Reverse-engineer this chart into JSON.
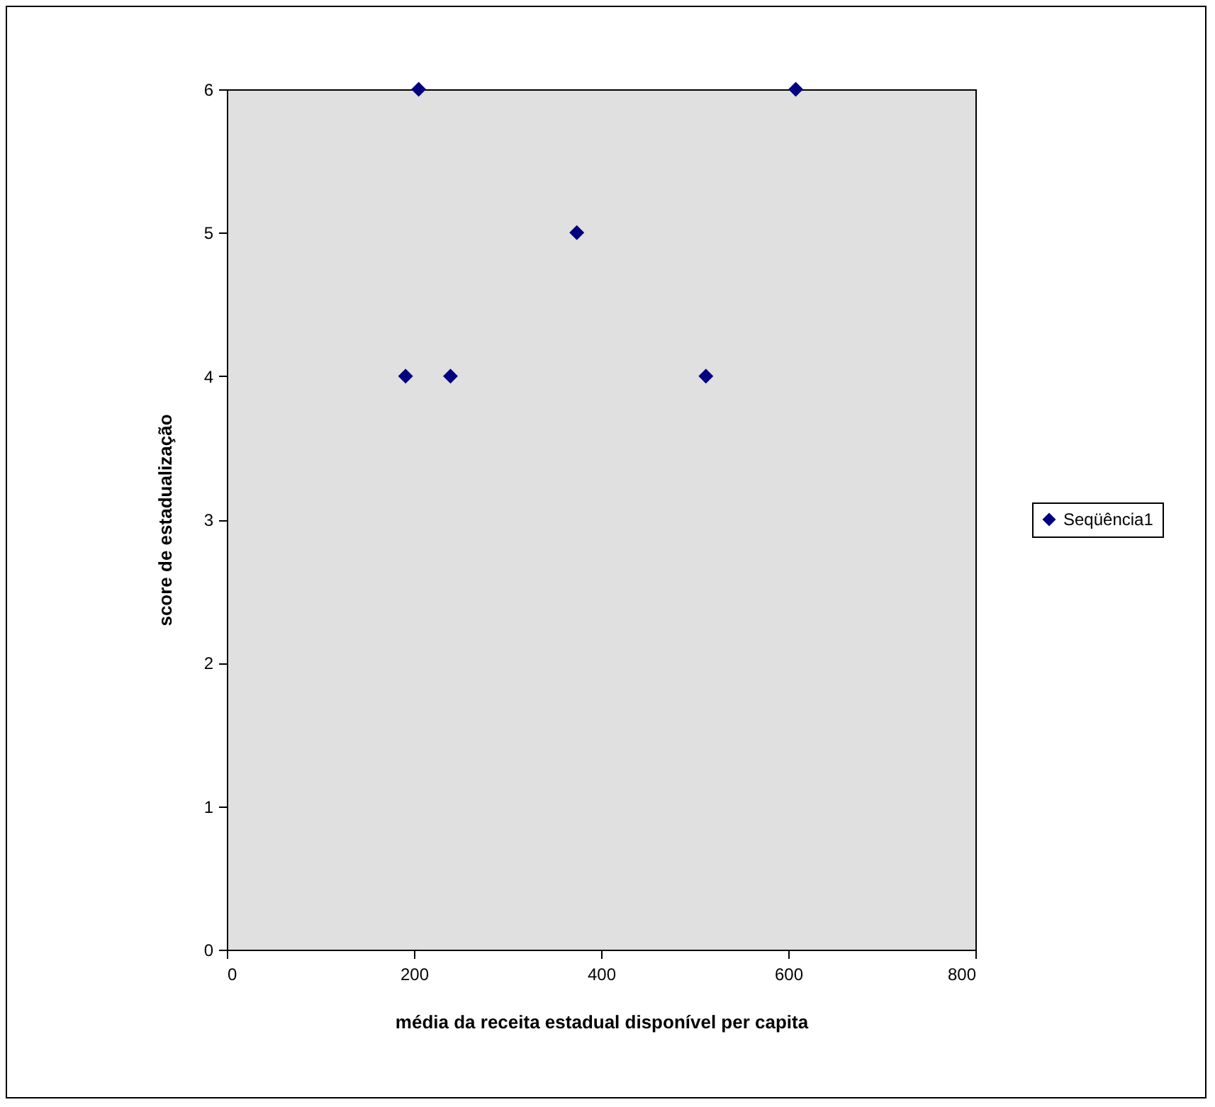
{
  "chart_data": {
    "type": "scatter",
    "xlabel": "média da receita estadual disponível per capita",
    "ylabel": "score de estadualização",
    "x": [
      191,
      205,
      239,
      374,
      512,
      608
    ],
    "series": [
      {
        "name": "Seqüência1",
        "color": "#000080",
        "values": [
          4,
          6,
          4,
          5,
          4,
          6
        ]
      }
    ],
    "xlim": [
      0,
      800
    ],
    "xticks": [
      0,
      200,
      400,
      600,
      800
    ],
    "ylim": [
      0,
      6
    ],
    "yticks": [
      0,
      1,
      2,
      3,
      4,
      5,
      6
    ],
    "marker": "diamond",
    "legend": "right",
    "grid": false
  }
}
